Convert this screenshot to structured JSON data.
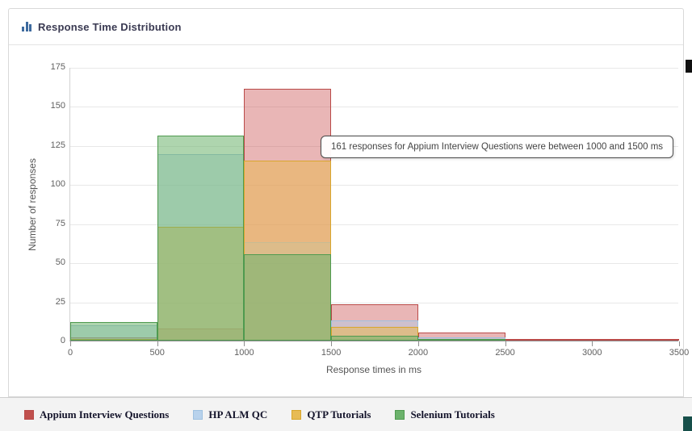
{
  "panel": {
    "title": "Response Time Distribution"
  },
  "chart_data": {
    "type": "bar",
    "subtype": "overlaid-histogram",
    "bins": [
      "0-500",
      "500-1000",
      "1000-1500",
      "1500-2000",
      "2000-2500",
      "2500-3000",
      "3000-3500"
    ],
    "x_ticks": [
      0,
      500,
      1000,
      1500,
      2000,
      2500,
      3000,
      3500
    ],
    "xlim": [
      0,
      3500
    ],
    "ylim": [
      0,
      175
    ],
    "y_tick_step": 25,
    "xlabel": "Response times in ms",
    "ylabel": "Number of responses",
    "grid": "horizontal",
    "legend_position": "bottom",
    "series": [
      {
        "name": "Appium Interview Questions",
        "color": "#b94a48",
        "fill": "rgba(201,72,72,0.40)",
        "swatch": "#c0504d",
        "values": [
          2,
          8,
          161,
          23,
          5,
          1,
          1
        ]
      },
      {
        "name": "HP ALM QC",
        "color": "#9fc1e0",
        "fill": "rgba(174,203,233,0.45)",
        "swatch": "#b8d2ec",
        "values": [
          10,
          119,
          63,
          13,
          2,
          0,
          0
        ]
      },
      {
        "name": "QTP Tutorials",
        "color": "#d8a62c",
        "fill": "rgba(233,184,84,0.55)",
        "swatch": "#e7bb55",
        "values": [
          1,
          73,
          115,
          9,
          1,
          0,
          0
        ]
      },
      {
        "name": "Selenium Tutorials",
        "color": "#4f9a4f",
        "fill": "rgba(108,178,108,0.55)",
        "swatch": "#6cb26c",
        "values": [
          12,
          131,
          55,
          3,
          1,
          0,
          0
        ]
      }
    ],
    "tooltip": {
      "text": "161 responses for Appium Interview Questions were between 1000 and 1500 ms"
    }
  }
}
